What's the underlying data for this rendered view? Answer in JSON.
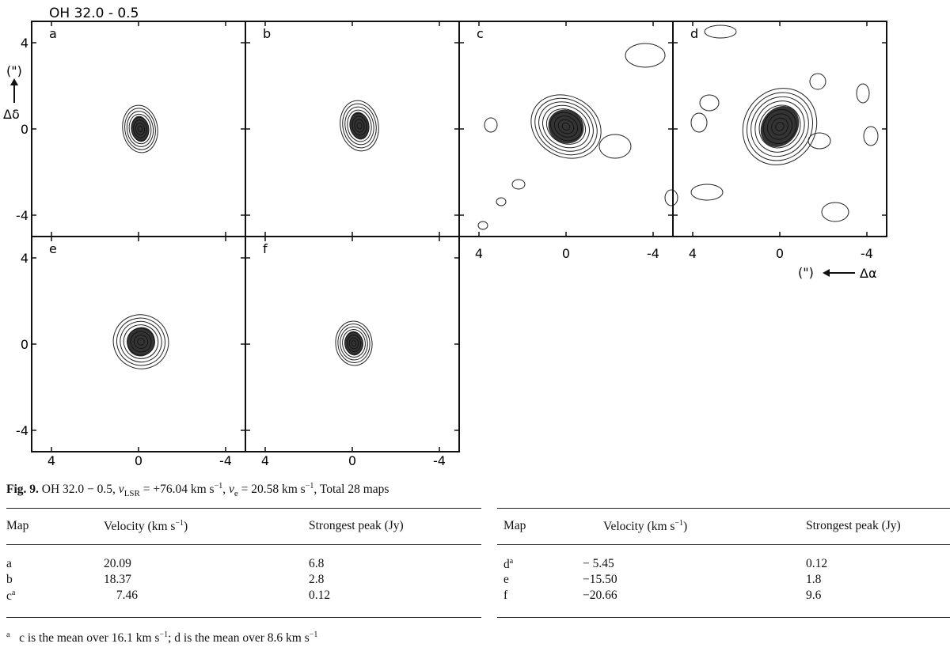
{
  "figure": {
    "object_label": "OH 32.0 - 0.5",
    "panels": [
      {
        "id": "a",
        "label": "a",
        "peak_jy": "6.8"
      },
      {
        "id": "b",
        "label": "b",
        "peak_jy": "2.8"
      },
      {
        "id": "c",
        "label": "c",
        "peak_jy": "0.12"
      },
      {
        "id": "d",
        "label": "d",
        "peak_jy": "0.12"
      },
      {
        "id": "e",
        "label": "e",
        "peak_jy": "1.8"
      },
      {
        "id": "f",
        "label": "f",
        "peak_jy": "9.6"
      }
    ],
    "axes": {
      "x_ticks": [
        "4",
        "0",
        "-4"
      ],
      "y_ticks": [
        "4",
        "0",
        "-4"
      ],
      "y_unit": "(\")",
      "y_symbol": "Δδ",
      "x_unit": "(\")",
      "x_symbol": "Δα"
    }
  },
  "caption": {
    "fig_label": "Fig. 9.",
    "text_object": "OH 32.0 − 0.5,",
    "v_lsr_label": "v",
    "v_lsr_sub": "LSR",
    "v_lsr_value": "= +76.04 km s",
    "v_e_label": "v",
    "v_e_sub": "e",
    "v_e_value": "= 20.58 km s",
    "unit_exp": "−1",
    "total": ", Total 28 maps",
    "sep": ","
  },
  "table": {
    "headers": {
      "map": "Map",
      "velocity": "Velocity (km s",
      "velocity_exp": "−1",
      "velocity_close": ")",
      "peak": "Strongest peak (Jy)"
    },
    "left_rows": [
      {
        "map": "a",
        "sup": "",
        "velocity": "20.09",
        "peak": "6.8"
      },
      {
        "map": "b",
        "sup": "",
        "velocity": "18.37",
        "peak": "2.8"
      },
      {
        "map": "c",
        "sup": "a",
        "velocity": "7.46",
        "peak": "0.12"
      }
    ],
    "right_rows": [
      {
        "map": "d",
        "sup": "a",
        "velocity": "− 5.45",
        "peak": "0.12"
      },
      {
        "map": "e",
        "sup": "",
        "velocity": "−15.50",
        "peak": "1.8"
      },
      {
        "map": "f",
        "sup": "",
        "velocity": "−20.66",
        "peak": "9.6"
      }
    ]
  },
  "footnote": {
    "marker": "a",
    "text": "c is the mean over 16.1 km s",
    "exp": "−1",
    "text2": "; d is the mean over 8.6 km s",
    "exp2": "−1"
  }
}
